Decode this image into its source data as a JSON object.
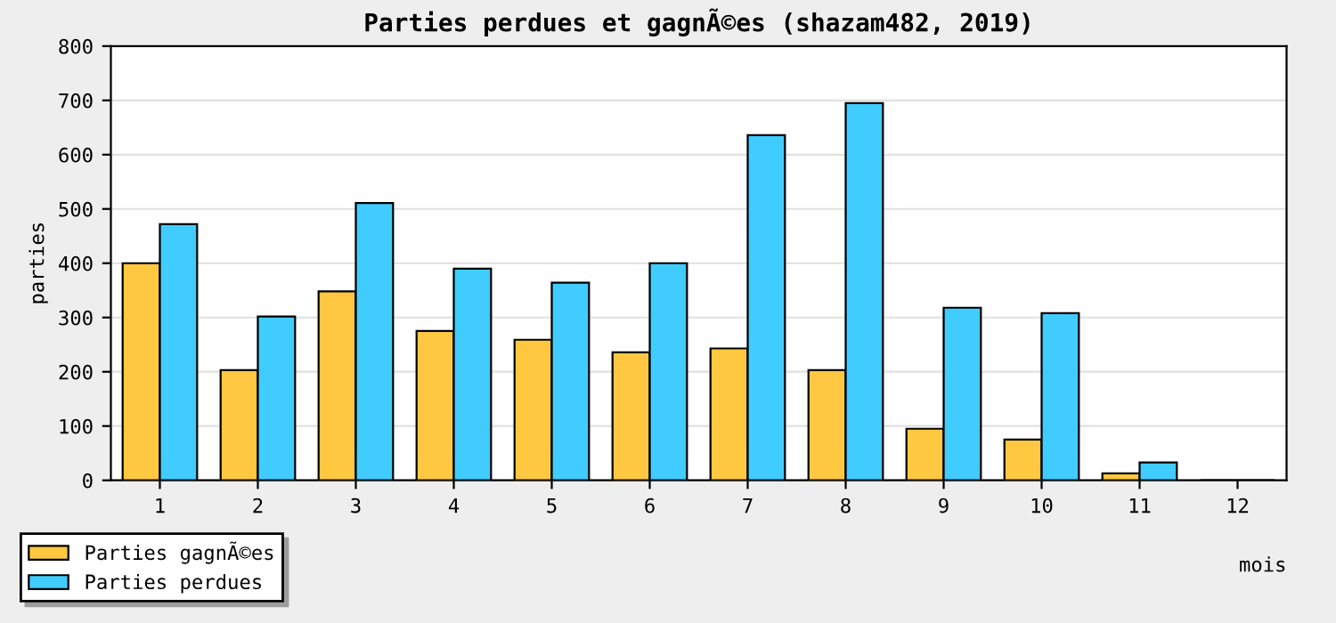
{
  "chart_data": {
    "type": "bar",
    "title": "Parties perdues et gagnÃ©es (shazam482, 2019)",
    "xlabel": "mois",
    "ylabel": "parties",
    "categories": [
      "1",
      "2",
      "3",
      "4",
      "5",
      "6",
      "7",
      "8",
      "9",
      "10",
      "11",
      "12"
    ],
    "series": [
      {
        "name": "Parties gagnÃ©es",
        "color": "#ffc840",
        "values": [
          400,
          203,
          348,
          275,
          259,
          236,
          243,
          203,
          95,
          75,
          13,
          0
        ]
      },
      {
        "name": "Parties perdues",
        "color": "#40ccff",
        "values": [
          472,
          302,
          511,
          390,
          364,
          400,
          636,
          695,
          318,
          308,
          33,
          0
        ]
      }
    ],
    "ylim": [
      0,
      800
    ],
    "yticks": [
      0,
      100,
      200,
      300,
      400,
      500,
      600,
      700,
      800
    ],
    "grid": "y",
    "legend": "bottom left"
  }
}
